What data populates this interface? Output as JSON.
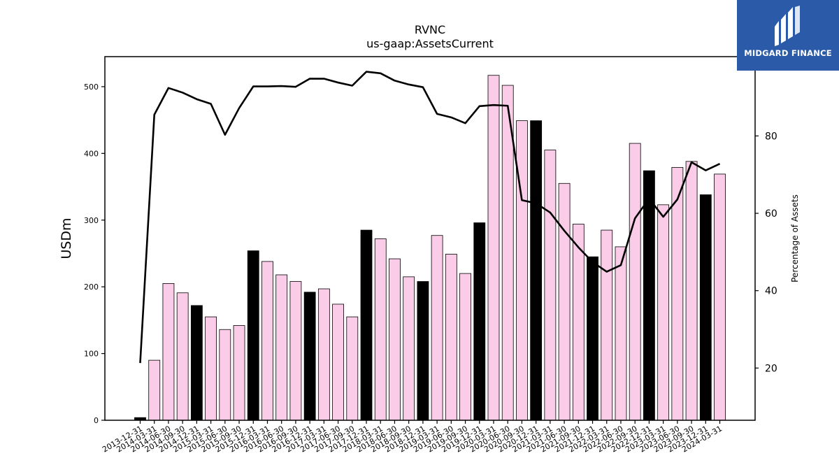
{
  "chart_data": {
    "type": "bar",
    "title": "RVNC",
    "subtitle": "us-gaap:AssetsCurrent",
    "ylabel": "USDm",
    "y2label": "Percentage of Assets",
    "ylim": [
      0,
      545
    ],
    "y2lim": [
      6.5,
      100.5
    ],
    "yticks": [
      0,
      100,
      200,
      300,
      400,
      500
    ],
    "y2ticks": [
      20,
      40,
      60,
      80
    ],
    "categories": [
      "2013-12-31",
      "2014-03-31",
      "2014-06-30",
      "2014-09-30",
      "2014-12-31",
      "2015-03-31",
      "2015-06-30",
      "2015-09-30",
      "2015-12-31",
      "2016-03-31",
      "2016-06-30",
      "2016-09-30",
      "2016-12-31",
      "2017-03-31",
      "2017-06-30",
      "2017-09-30",
      "2017-12-31",
      "2018-03-31",
      "2018-06-30",
      "2018-09-30",
      "2018-12-31",
      "2019-03-31",
      "2019-06-30",
      "2019-09-30",
      "2019-12-31",
      "2020-03-31",
      "2020-06-30",
      "2020-09-30",
      "2020-12-31",
      "2021-03-31",
      "2021-06-30",
      "2021-09-30",
      "2021-12-31",
      "2022-03-31",
      "2022-06-30",
      "2022-09-30",
      "2022-12-31",
      "2023-03-31",
      "2023-06-30",
      "2023-09-30",
      "2023-12-31",
      "2024-03-31"
    ],
    "series": [
      {
        "type": "bar",
        "values": [
          4,
          90,
          205,
          191,
          172,
          155,
          136,
          142,
          254,
          238,
          218,
          208,
          192,
          197,
          174,
          155,
          285,
          272,
          242,
          215,
          208,
          277,
          249,
          220,
          296,
          517,
          502,
          449,
          449,
          405,
          355,
          294,
          245,
          285,
          260,
          415,
          374,
          323,
          379,
          388,
          338,
          369
        ],
        "highlight": [
          true,
          false,
          false,
          false,
          true,
          false,
          false,
          false,
          true,
          false,
          false,
          false,
          true,
          false,
          false,
          false,
          true,
          false,
          false,
          false,
          true,
          false,
          false,
          false,
          true,
          false,
          false,
          false,
          true,
          false,
          false,
          false,
          true,
          false,
          false,
          false,
          true,
          false,
          false,
          false,
          true,
          false
        ]
      },
      {
        "type": "line",
        "axis": "right",
        "values": [
          21.3,
          85.5,
          92.4,
          91.2,
          89.5,
          88.3,
          80.3,
          87.2,
          92.8,
          92.8,
          92.9,
          92.7,
          94.8,
          94.8,
          93.8,
          93.0,
          96.6,
          96.2,
          94.3,
          93.3,
          92.6,
          85.7,
          84.8,
          83.3,
          87.7,
          88.0,
          87.8,
          63.4,
          62.6,
          60.2,
          55.5,
          51.2,
          47.4,
          44.9,
          46.6,
          58.7,
          63.8,
          59.1,
          63.6,
          73.2,
          71.1,
          72.8
        ]
      }
    ],
    "colors": {
      "bar": "#fbcce7",
      "bar_highlight": "#000000",
      "bar_edge": "#000000",
      "line": "#000000"
    }
  },
  "logo": {
    "text": "MIDGARD FINANCE",
    "bg": "#2b5aa8"
  }
}
